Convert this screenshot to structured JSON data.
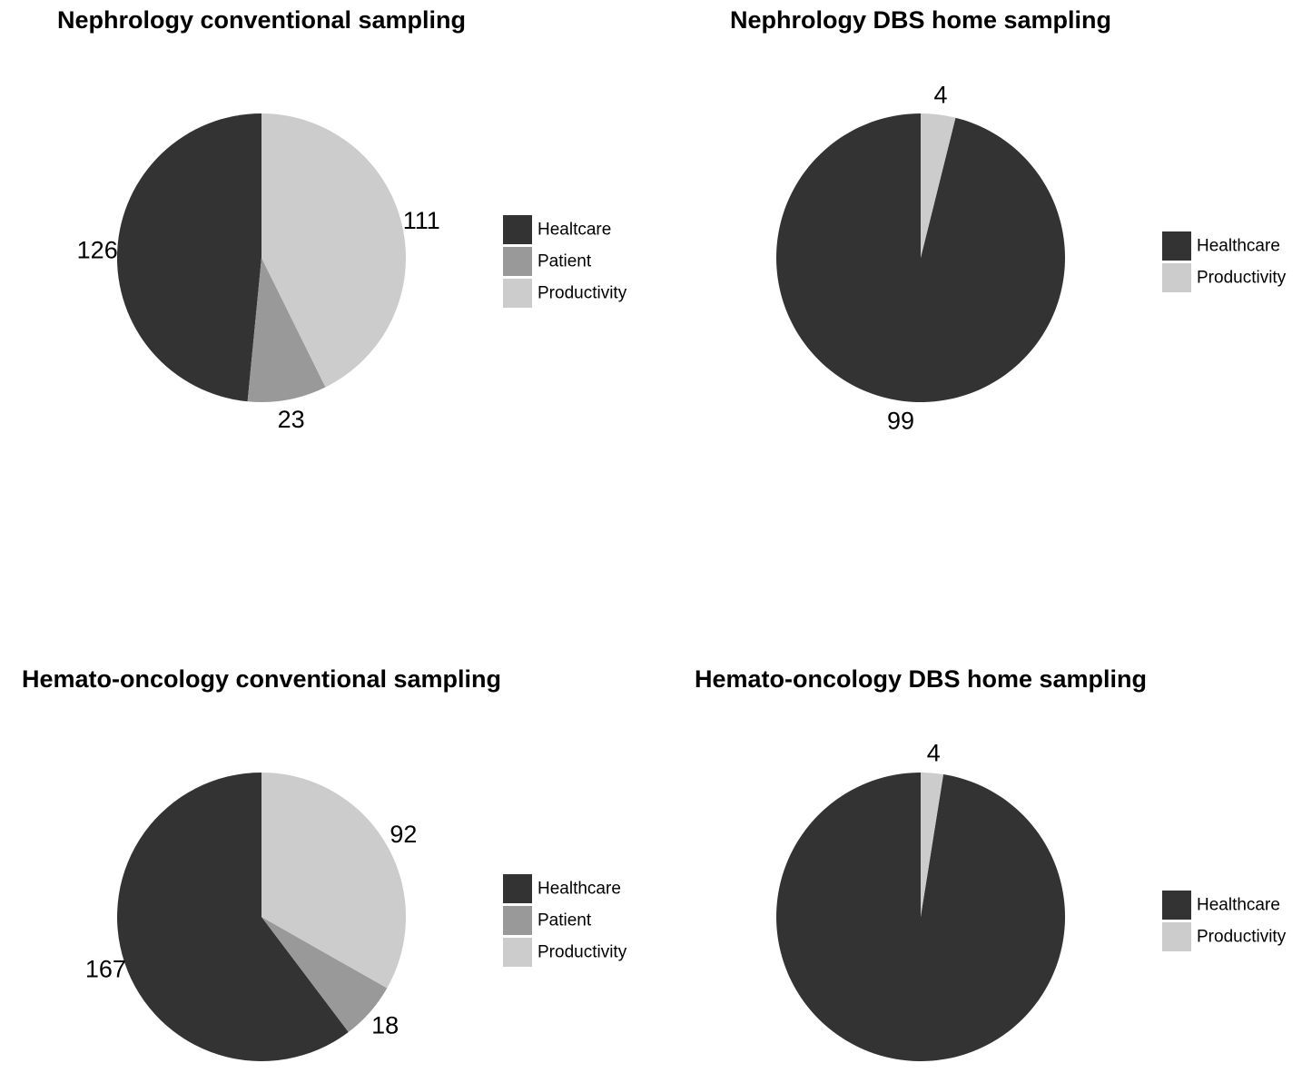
{
  "colors": {
    "Healtcare": "#333333",
    "Healthcare": "#333333",
    "Patient": "#999999",
    "Productivity": "#cccccc"
  },
  "chart_data": [
    {
      "type": "pie",
      "title": "Nephrology conventional sampling",
      "series": [
        {
          "name": "Healtcare",
          "value": 126
        },
        {
          "name": "Patient",
          "value": 23
        },
        {
          "name": "Productivity",
          "value": 111
        }
      ],
      "legend": [
        "Healtcare",
        "Patient",
        "Productivity"
      ],
      "legend_position": "right",
      "start_angle": "12 o'clock, counter-clockwise"
    },
    {
      "type": "pie",
      "title": "Nephrology DBS home sampling",
      "series": [
        {
          "name": "Healthcare",
          "value": 99
        },
        {
          "name": "Productivity",
          "value": 4
        }
      ],
      "legend": [
        "Healthcare",
        "Productivity"
      ],
      "legend_position": "right",
      "start_angle": "12 o'clock, counter-clockwise"
    },
    {
      "type": "pie",
      "title": "Hemato-oncology conventional sampling",
      "series": [
        {
          "name": "Healthcare",
          "value": 167
        },
        {
          "name": "Patient",
          "value": 18
        },
        {
          "name": "Productivity",
          "value": 92
        }
      ],
      "legend": [
        "Healthcare",
        "Patient",
        "Productivity"
      ],
      "legend_position": "right",
      "start_angle": "12 o'clock, counter-clockwise"
    },
    {
      "type": "pie",
      "title": "Hemato-oncology DBS home sampling",
      "series": [
        {
          "name": "Healthcare",
          "value": 155
        },
        {
          "name": "Productivity",
          "value": 4
        }
      ],
      "legend": [
        "Healthcare",
        "Productivity"
      ],
      "legend_position": "right",
      "start_angle": "12 o'clock, counter-clockwise"
    }
  ]
}
